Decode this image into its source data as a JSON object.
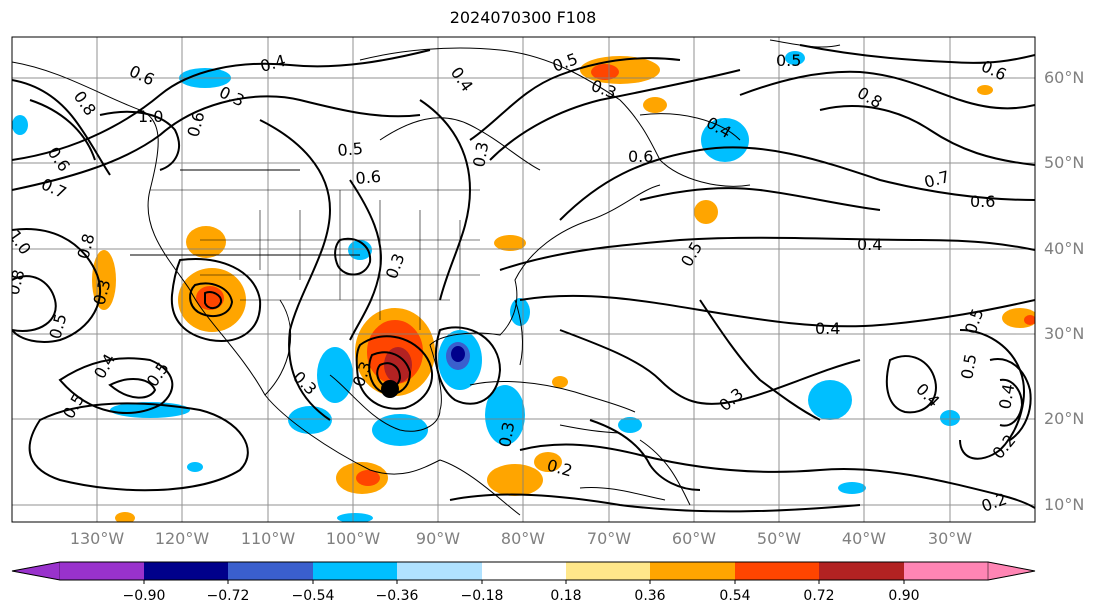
{
  "title": "2024070300 F108",
  "map": {
    "lat_labels": [
      "60°N",
      "50°N",
      "40°N",
      "30°N",
      "20°N",
      "10°N"
    ],
    "lon_labels": [
      "130°W",
      "120°W",
      "110°W",
      "100°W",
      "90°W",
      "80°W",
      "70°W",
      "60°W",
      "50°W",
      "40°W",
      "30°W"
    ],
    "contour_labels": [
      "0.4",
      "0.6",
      "0.3",
      "0.8",
      "0.6",
      "1.0",
      "0.7",
      "1.0",
      "0.8",
      "0.8",
      "0.5",
      "0.3",
      "0.6",
      "0.5",
      "0.6",
      "0.3",
      "0.4",
      "0.6",
      "0.5",
      "0.3",
      "0.4",
      "0.5",
      "0.3",
      "0.3",
      "0.4",
      "0.5",
      "0.3",
      "0.2",
      "0.3",
      "0.4",
      "0.5",
      "0.6",
      "0.7",
      "0.8",
      "0.6",
      "0.5",
      "0.4",
      "0.2",
      "0.2",
      "0.4",
      "0.5",
      "0.4",
      "0.5",
      "0.3"
    ],
    "colors": {
      "contour": "#000000",
      "coast": "#000000",
      "grid": "#808080"
    }
  },
  "colorbar": {
    "labels": [
      "−0.90",
      "−0.72",
      "−0.54",
      "−0.36",
      "−0.18",
      "0.18",
      "0.36",
      "0.54",
      "0.72",
      "0.90"
    ],
    "colors": [
      "#9932CC",
      "#00008B",
      "#3A5FCD",
      "#00BFFF",
      "#B0E2FF",
      "#FFFFFF",
      "#FFE78A",
      "#FFA500",
      "#FF4500",
      "#B22222",
      "#FF85B4"
    ]
  }
}
